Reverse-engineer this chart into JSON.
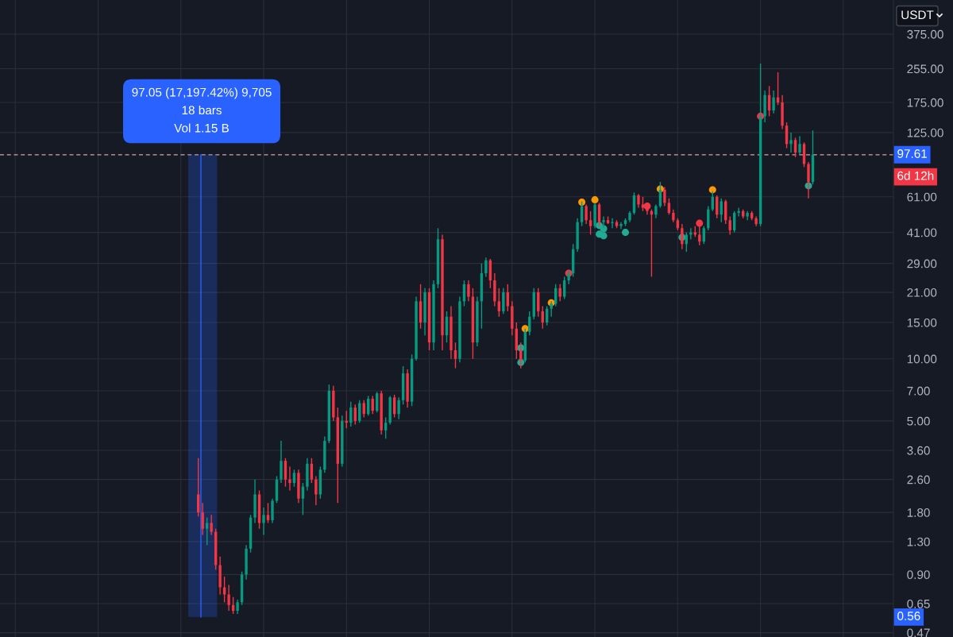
{
  "chart_data": {
    "type": "candlestick",
    "categories": [
      null,
      null,
      null,
      null,
      null,
      null,
      null,
      null,
      null,
      null,
      null,
      null,
      null,
      null,
      null,
      null,
      null,
      null,
      null,
      null,
      null,
      null,
      null,
      null,
      null,
      null,
      null,
      null,
      null,
      null,
      null,
      null,
      null,
      null,
      null,
      null,
      null,
      null,
      null,
      null,
      null,
      null,
      null,
      null,
      null,
      null,
      null,
      null,
      null,
      null,
      null,
      null,
      null,
      null,
      null,
      null,
      null,
      null,
      null,
      null,
      null,
      null,
      null,
      null,
      null,
      null,
      null,
      null,
      null,
      null,
      null,
      null,
      null,
      null,
      null,
      null,
      null,
      null,
      null,
      null,
      null,
      null,
      null,
      null,
      null,
      null,
      null,
      null,
      null,
      null,
      null,
      null,
      null,
      null,
      null,
      null,
      null,
      null,
      null,
      null,
      null,
      null,
      null,
      null,
      null,
      null,
      null,
      null,
      null,
      null,
      null,
      null,
      null,
      null,
      null,
      null,
      null,
      null,
      null,
      null,
      null,
      null,
      null,
      null,
      null,
      null,
      null,
      null,
      null,
      null,
      null,
      null,
      null,
      null,
      null,
      null,
      null,
      null,
      null,
      null,
      null,
      null,
      null,
      null,
      null,
      null,
      null,
      null,
      null,
      null,
      null,
      null,
      null,
      null,
      null,
      null,
      null,
      null,
      null,
      null,
      null,
      null,
      null,
      null,
      null,
      null,
      null,
      null,
      null,
      null,
      null,
      null,
      null,
      null,
      null,
      null,
      null,
      null,
      null,
      null,
      null,
      null,
      null,
      null,
      null,
      null,
      null,
      null,
      null,
      null,
      null,
      null,
      null,
      null,
      null,
      null,
      null,
      null,
      null,
      null,
      null,
      null,
      null,
      null,
      null
    ],
    "ohlc": [
      null,
      null,
      null,
      null,
      null,
      null,
      null,
      null,
      null,
      null,
      null,
      null,
      null,
      null,
      null,
      null,
      null,
      null,
      null,
      null,
      null,
      null,
      null,
      null,
      null,
      null,
      null,
      null,
      null,
      null,
      null,
      null,
      null,
      null,
      null,
      null,
      null,
      null,
      null,
      null,
      null,
      null,
      null,
      null,
      null,
      [
        2.2,
        3.3,
        1.72,
        1.8
      ],
      [
        1.8,
        2.0,
        1.4,
        1.5
      ],
      [
        1.5,
        1.7,
        1.25,
        1.6
      ],
      [
        1.6,
        1.75,
        1.4,
        1.45
      ],
      [
        1.45,
        1.5,
        0.95,
        1.0
      ],
      [
        1.0,
        1.1,
        0.72,
        0.78
      ],
      [
        0.78,
        0.88,
        0.66,
        0.72
      ],
      [
        0.72,
        0.8,
        0.6,
        0.64
      ],
      [
        0.64,
        0.7,
        0.58,
        0.6
      ],
      [
        0.6,
        0.68,
        0.58,
        0.66
      ],
      [
        0.66,
        0.93,
        0.64,
        0.9
      ],
      [
        0.9,
        1.25,
        0.85,
        1.2
      ],
      [
        1.2,
        1.75,
        1.15,
        1.7
      ],
      [
        1.7,
        2.6,
        1.6,
        2.2
      ],
      [
        2.2,
        2.3,
        1.5,
        1.6
      ],
      [
        1.6,
        1.9,
        1.4,
        1.75
      ],
      [
        1.75,
        2.0,
        1.6,
        1.65
      ],
      [
        1.65,
        2.1,
        1.6,
        2.05
      ],
      [
        2.05,
        2.7,
        2.0,
        2.6
      ],
      [
        2.6,
        4.0,
        2.5,
        3.2
      ],
      [
        3.2,
        3.3,
        2.4,
        2.6
      ],
      [
        2.6,
        3.0,
        2.3,
        2.5
      ],
      [
        2.5,
        2.9,
        2.4,
        2.8
      ],
      [
        2.8,
        2.9,
        2.0,
        2.1
      ],
      [
        2.1,
        2.5,
        1.75,
        2.4
      ],
      [
        2.4,
        3.3,
        2.3,
        3.1
      ],
      [
        3.1,
        3.3,
        2.5,
        2.6
      ],
      [
        2.6,
        2.7,
        1.95,
        2.2
      ],
      [
        2.2,
        3.0,
        2.1,
        2.9
      ],
      [
        2.9,
        4.2,
        2.8,
        4.0
      ],
      [
        4.0,
        7.5,
        3.9,
        7.0
      ],
      [
        7.0,
        7.4,
        5.0,
        5.2
      ],
      [
        5.2,
        5.8,
        2.0,
        3.1
      ],
      [
        3.1,
        5.3,
        3.0,
        5.0
      ],
      [
        5.0,
        5.6,
        4.6,
        4.9
      ],
      [
        4.9,
        6.2,
        4.7,
        5.8
      ],
      [
        5.8,
        6.0,
        4.8,
        5.0
      ],
      [
        5.0,
        6.3,
        4.9,
        6.1
      ],
      [
        6.1,
        6.3,
        5.2,
        5.4
      ],
      [
        5.4,
        6.6,
        5.3,
        6.4
      ],
      [
        6.4,
        6.6,
        5.4,
        5.6
      ],
      [
        5.6,
        6.9,
        5.5,
        6.8
      ],
      [
        6.8,
        7.0,
        4.3,
        4.5
      ],
      [
        4.5,
        5.2,
        4.1,
        4.9
      ],
      [
        4.9,
        6.6,
        4.8,
        6.5
      ],
      [
        6.5,
        6.7,
        5.2,
        5.4
      ],
      [
        5.4,
        6.5,
        5.1,
        6.3
      ],
      [
        6.3,
        9.2,
        6.0,
        8.5
      ],
      [
        8.5,
        8.9,
        5.8,
        6.2
      ],
      [
        6.2,
        10.5,
        5.9,
        10.0
      ],
      [
        10,
        20,
        9.8,
        19
      ],
      [
        19,
        23,
        14,
        15
      ],
      [
        15,
        22,
        13,
        21
      ],
      [
        21,
        22,
        11,
        12
      ],
      [
        12,
        24,
        11,
        23
      ],
      [
        23,
        43,
        22,
        38
      ],
      [
        38,
        40,
        11,
        13
      ],
      [
        13,
        17,
        12,
        16
      ],
      [
        16,
        18,
        10,
        11
      ],
      [
        11,
        12,
        9.0,
        10
      ],
      [
        10,
        20,
        9.6,
        19
      ],
      [
        19,
        24,
        18,
        23
      ],
      [
        23,
        24,
        19,
        20
      ],
      [
        20,
        22,
        10,
        12
      ],
      [
        12,
        20,
        11.5,
        19
      ],
      [
        19,
        29,
        14,
        26
      ],
      [
        26,
        31,
        25,
        30
      ],
      [
        30,
        30.5,
        22,
        24
      ],
      [
        24,
        26,
        18,
        19
      ],
      [
        19,
        22,
        16,
        17
      ],
      [
        17,
        22,
        16.5,
        21
      ],
      [
        21,
        23,
        17,
        18
      ],
      [
        18,
        19,
        13,
        14
      ],
      [
        14,
        15,
        10,
        11
      ],
      [
        11,
        12,
        9.0,
        9.8
      ],
      [
        9.8,
        14,
        9.6,
        13.5
      ],
      [
        13.5,
        17,
        13,
        16
      ],
      [
        16,
        22,
        15.5,
        21
      ],
      [
        21,
        22,
        16,
        17
      ],
      [
        17,
        18,
        14,
        15
      ],
      [
        15,
        18,
        14.5,
        17.5
      ],
      [
        17.5,
        19,
        16,
        18.5
      ],
      [
        18.5,
        23,
        18,
        22
      ],
      [
        22,
        23,
        19,
        20
      ],
      [
        20,
        25,
        19.5,
        24
      ],
      [
        24,
        27,
        23,
        26
      ],
      [
        26,
        36,
        25,
        34
      ],
      [
        34,
        48,
        33,
        46
      ],
      [
        46,
        58,
        44,
        55
      ],
      [
        55,
        56,
        45,
        47
      ],
      [
        47,
        52,
        40,
        44
      ],
      [
        44,
        57,
        43,
        56
      ],
      [
        56,
        57,
        44,
        46
      ],
      [
        46,
        49,
        43,
        47
      ],
      [
        47,
        49,
        45,
        45.5
      ],
      [
        45.5,
        48,
        43,
        46
      ],
      [
        46,
        47,
        43,
        44
      ],
      [
        44,
        46,
        42.5,
        45
      ],
      [
        45,
        48,
        44,
        47
      ],
      [
        47,
        52,
        46,
        51
      ],
      [
        51,
        64,
        50,
        62
      ],
      [
        62,
        63,
        54,
        56
      ],
      [
        56,
        61,
        52,
        54
      ],
      [
        54,
        56,
        50,
        52
      ],
      [
        52,
        53,
        25,
        50
      ],
      [
        50,
        56,
        48,
        55
      ],
      [
        55,
        72,
        54,
        66
      ],
      [
        66,
        68,
        55,
        57
      ],
      [
        57,
        60,
        50,
        51
      ],
      [
        51,
        53,
        46,
        47
      ],
      [
        47,
        48,
        42,
        43
      ],
      [
        43,
        45,
        34,
        36
      ],
      [
        36,
        41,
        33,
        40
      ],
      [
        40,
        43,
        38,
        41
      ],
      [
        41,
        44,
        39,
        40
      ],
      [
        40,
        45,
        35.5,
        37
      ],
      [
        37,
        44,
        36,
        43
      ],
      [
        43,
        55,
        42,
        53
      ],
      [
        53,
        65,
        52,
        61
      ],
      [
        61,
        62,
        48,
        50
      ],
      [
        50,
        60,
        46,
        58
      ],
      [
        58,
        59,
        45,
        47
      ],
      [
        47,
        49,
        40,
        42
      ],
      [
        42,
        52,
        41,
        51
      ],
      [
        51,
        54,
        49,
        52
      ],
      [
        52,
        53,
        48,
        49
      ],
      [
        49,
        52,
        47,
        51
      ],
      [
        51,
        52,
        47,
        48
      ],
      [
        48,
        49,
        44,
        45
      ],
      [
        45,
        270,
        44,
        150
      ],
      [
        150,
        200,
        140,
        190
      ],
      [
        190,
        210,
        150,
        160
      ],
      [
        160,
        200,
        155,
        185
      ],
      [
        185,
        245,
        170,
        175
      ],
      [
        175,
        190,
        130,
        135
      ],
      [
        135,
        140,
        105,
        110
      ],
      [
        110,
        125,
        100,
        115
      ],
      [
        115,
        118,
        95,
        100
      ],
      [
        100,
        120,
        98,
        110
      ],
      [
        110,
        112,
        85,
        88
      ],
      [
        88,
        90,
        60,
        72
      ],
      [
        72,
        128,
        70,
        97.61
      ],
      null,
      null,
      null,
      null,
      null,
      null,
      null,
      null,
      null,
      null,
      null,
      null,
      null,
      null,
      null,
      null,
      null,
      null
    ],
    "colors": [
      null,
      null,
      null,
      null,
      null,
      null,
      null,
      null,
      null,
      null,
      null,
      null,
      null,
      null,
      null,
      null,
      null,
      null,
      null,
      null,
      null,
      null,
      null,
      null,
      null,
      null,
      null,
      null,
      null,
      null,
      null,
      null,
      null,
      null,
      null,
      null,
      null,
      null,
      null,
      null,
      null,
      null,
      null,
      null,
      null,
      "#f23645",
      "#f23645",
      "#089981",
      "#f23645",
      "#f23645",
      "#f23645",
      "#f23645",
      "#f23645",
      "#f23645",
      "#089981",
      "#089981",
      "#089981",
      "#089981",
      "#089981",
      "#f23645",
      "#089981",
      "#f23645",
      "#089981",
      "#089981",
      "#089981",
      "#f23645",
      "#f23645",
      "#089981",
      "#f23645",
      "#089981",
      "#089981",
      "#f23645",
      "#f23645",
      "#089981",
      "#089981",
      "#089981",
      "#f23645",
      "#f23645",
      "#089981",
      "#f23645",
      "#089981",
      "#f23645",
      "#089981",
      "#f23645",
      "#089981",
      "#f23645",
      "#089981",
      "#f23645",
      "#089981",
      "#089981",
      "#f23645",
      "#089981",
      "#089981",
      "#f23645",
      "#089981",
      "#089981",
      "#f23645",
      "#089981",
      "#f23645",
      "#089981",
      "#089981",
      "#f23645",
      "#089981",
      "#f23645",
      "#f23645",
      "#089981",
      "#089981",
      "#f23645",
      "#f23645",
      "#089981",
      "#089981",
      "#089981",
      "#f23645",
      "#f23645",
      "#f23645",
      "#089981",
      "#f23645",
      "#f23645",
      "#f23645",
      "#f23645",
      "#089981",
      "#089981",
      "#089981",
      "#f23645",
      "#f23645",
      "#089981",
      "#089981",
      "#089981",
      "#f23645",
      "#089981",
      "#089981",
      "#089981",
      "#089981",
      "#089981",
      "#f23645",
      "#f23645",
      "#089981",
      "#f23645",
      "#089981",
      "#f23645",
      "#089981",
      "#f23645",
      "#089981",
      "#089981",
      "#089981",
      "#089981",
      "#f23645",
      "#f23645",
      "#f23645",
      "#f23645",
      "#089981",
      "#089981",
      "#f23645",
      "#f23645",
      "#f23645",
      "#f23645",
      "#f23645",
      "#089981",
      "#089981",
      "#f23645",
      "#f23645",
      "#089981",
      "#089981",
      "#089981",
      "#f23645",
      "#089981",
      "#f23645",
      "#f23645",
      "#089981",
      "#089981",
      "#f23645",
      "#089981",
      "#f23645",
      "#f23645",
      "#089981",
      "#089981",
      "#f23645",
      "#089981",
      "#f23645",
      "#f23645",
      "#f23645",
      "#089981",
      "#f23645",
      "#089981",
      "#f23645",
      "#f23645",
      "#089981",
      null,
      null,
      null,
      null,
      null,
      null,
      null,
      null,
      null,
      null,
      null,
      null,
      null,
      null,
      null,
      null,
      null,
      null
    ],
    "series": [
      {
        "type": "scatter",
        "color": "#ff9800",
        "values": [
          null,
          null,
          null,
          null,
          null,
          null,
          null,
          null,
          null,
          null,
          null,
          null,
          null,
          null,
          null,
          null,
          null,
          null,
          null,
          null,
          null,
          null,
          null,
          null,
          null,
          null,
          null,
          null,
          null,
          null,
          null,
          null,
          null,
          null,
          null,
          null,
          null,
          null,
          null,
          null,
          null,
          null,
          null,
          null,
          null,
          null,
          null,
          null,
          null,
          null,
          null,
          null,
          null,
          null,
          null,
          null,
          null,
          null,
          null,
          null,
          null,
          null,
          null,
          null,
          null,
          null,
          null,
          null,
          null,
          null,
          null,
          null,
          null,
          null,
          null,
          null,
          null,
          null,
          null,
          null,
          null,
          null,
          null,
          null,
          null,
          null,
          null,
          null,
          null,
          null,
          null,
          null,
          null,
          null,
          null,
          null,
          null,
          null,
          null,
          null,
          null,
          null,
          null,
          null,
          null,
          null,
          null,
          null,
          null,
          null,
          null,
          null,
          null,
          null,
          null,
          null,
          null,
          null,
          null,
          null,
          14,
          null,
          null,
          null,
          null,
          null,
          18.7,
          null,
          null,
          null,
          null,
          null,
          null,
          57.5,
          null,
          null,
          59,
          null,
          null,
          null,
          null,
          null,
          null,
          null,
          null,
          null,
          null,
          null,
          null,
          null,
          null,
          66.6,
          null,
          null,
          null,
          null,
          null,
          null,
          null,
          null,
          null,
          null,
          null,
          66,
          null,
          null,
          null,
          null,
          null,
          null,
          null,
          null,
          null,
          null,
          null,
          null,
          null,
          null,
          null,
          null,
          null,
          null,
          null,
          null,
          null,
          null,
          null,
          null,
          null,
          null,
          null,
          null,
          null,
          null,
          null,
          null,
          null,
          null,
          null,
          null,
          null,
          null,
          null,
          null,
          null
        ]
      },
      {
        "type": "scatter",
        "color": "#f23645",
        "values": [
          null,
          null,
          null,
          null,
          null,
          null,
          null,
          null,
          null,
          null,
          null,
          null,
          null,
          null,
          null,
          null,
          null,
          null,
          null,
          null,
          null,
          null,
          null,
          null,
          null,
          null,
          null,
          null,
          null,
          null,
          null,
          null,
          null,
          null,
          null,
          null,
          null,
          null,
          null,
          null,
          null,
          null,
          null,
          null,
          null,
          null,
          null,
          null,
          null,
          null,
          null,
          null,
          null,
          null,
          null,
          null,
          null,
          null,
          null,
          null,
          null,
          null,
          null,
          null,
          null,
          null,
          null,
          null,
          null,
          null,
          null,
          null,
          null,
          null,
          null,
          null,
          null,
          null,
          null,
          null,
          null,
          null,
          null,
          null,
          null,
          null,
          null,
          null,
          null,
          null,
          null,
          null,
          null,
          null,
          null,
          null,
          null,
          null,
          null,
          null,
          null,
          null,
          null,
          null,
          null,
          null,
          null,
          null,
          null,
          null,
          null,
          null,
          null,
          null,
          null,
          null,
          null,
          null,
          null,
          null,
          null,
          null,
          null,
          null,
          null,
          null,
          null,
          null,
          null,
          null,
          26,
          null,
          null,
          null,
          null,
          null,
          null,
          null,
          null,
          null,
          null,
          null,
          null,
          null,
          null,
          null,
          null,
          null,
          55,
          null,
          null,
          null,
          null,
          null,
          null,
          null,
          null,
          null,
          null,
          null,
          45.4,
          null,
          null,
          null,
          null,
          null,
          null,
          null,
          null,
          null,
          null,
          null,
          null,
          null,
          150,
          null,
          null,
          null,
          null,
          null,
          null,
          null,
          null,
          null,
          null,
          null,
          null,
          null,
          null,
          null,
          null,
          null,
          null,
          null,
          null,
          null,
          null,
          null,
          null,
          null,
          null,
          null,
          null,
          null,
          null
        ]
      },
      {
        "type": "scatter",
        "color": "#22ab94",
        "values": [
          null,
          null,
          null,
          null,
          null,
          null,
          null,
          null,
          null,
          null,
          null,
          null,
          null,
          null,
          null,
          null,
          null,
          null,
          null,
          null,
          null,
          null,
          null,
          null,
          null,
          null,
          null,
          null,
          null,
          null,
          null,
          null,
          null,
          null,
          null,
          null,
          null,
          null,
          null,
          null,
          null,
          null,
          null,
          null,
          null,
          null,
          null,
          null,
          null,
          null,
          null,
          null,
          null,
          null,
          null,
          null,
          null,
          null,
          null,
          null,
          null,
          null,
          null,
          null,
          null,
          null,
          null,
          null,
          null,
          null,
          null,
          null,
          null,
          null,
          null,
          null,
          null,
          null,
          null,
          null,
          null,
          null,
          null,
          null,
          null,
          null,
          null,
          null,
          null,
          null,
          null,
          null,
          null,
          null,
          null,
          null,
          null,
          null,
          null,
          null,
          null,
          null,
          null,
          null,
          null,
          null,
          null,
          null,
          null,
          null,
          null,
          null,
          null,
          null,
          null,
          null,
          null,
          null,
          null,
          9.6,
          null,
          null,
          null,
          null,
          null,
          null,
          null,
          null,
          null,
          null,
          null,
          null,
          null,
          null,
          null,
          null,
          null,
          44.3,
          42.7,
          null,
          null,
          null,
          null,
          41,
          null,
          null,
          null,
          null,
          null,
          null,
          null,
          null,
          null,
          null,
          null,
          null,
          38.8,
          null,
          null,
          null,
          null,
          null,
          null,
          null,
          null,
          null,
          null,
          null,
          null,
          null,
          null,
          null,
          null,
          null,
          null,
          null,
          null,
          null,
          null,
          null,
          null,
          null,
          null,
          null,
          null,
          69,
          null,
          null,
          null,
          null,
          null,
          null,
          null,
          null,
          null,
          null,
          null,
          null,
          null,
          null,
          null,
          null,
          null,
          null,
          null
        ]
      },
      {
        "type": "scatter",
        "color": "#22ab94",
        "values": [
          null,
          null,
          null,
          null,
          null,
          null,
          null,
          null,
          null,
          null,
          null,
          null,
          null,
          null,
          null,
          null,
          null,
          null,
          null,
          null,
          null,
          null,
          null,
          null,
          null,
          null,
          null,
          null,
          null,
          null,
          null,
          null,
          null,
          null,
          null,
          null,
          null,
          null,
          null,
          null,
          null,
          null,
          null,
          null,
          null,
          null,
          null,
          null,
          null,
          null,
          null,
          null,
          null,
          null,
          null,
          null,
          null,
          null,
          null,
          null,
          null,
          null,
          null,
          null,
          null,
          null,
          null,
          null,
          null,
          null,
          null,
          null,
          null,
          null,
          null,
          null,
          null,
          null,
          null,
          null,
          null,
          null,
          null,
          null,
          null,
          null,
          null,
          null,
          null,
          null,
          null,
          null,
          null,
          null,
          null,
          null,
          null,
          null,
          null,
          null,
          null,
          null,
          null,
          null,
          null,
          null,
          null,
          null,
          null,
          null,
          null,
          null,
          null,
          null,
          null,
          null,
          null,
          null,
          null,
          11.3,
          null,
          null,
          null,
          null,
          null,
          null,
          null,
          null,
          null,
          null,
          null,
          null,
          null,
          null,
          null,
          null,
          null,
          40.2,
          39.5,
          null,
          null,
          null,
          null,
          null,
          null,
          null,
          null,
          null,
          null,
          null,
          null,
          null,
          null,
          null,
          null,
          null,
          null,
          null,
          null,
          null,
          null,
          null,
          null,
          null,
          null,
          null,
          null,
          null,
          null,
          null,
          null,
          null,
          null,
          null,
          null,
          null,
          null,
          null,
          null,
          null,
          null,
          null,
          null,
          null,
          null,
          null,
          null,
          null,
          null,
          null,
          null,
          null,
          null,
          null,
          null,
          null,
          null,
          null,
          null,
          null,
          null,
          null,
          null,
          null,
          null
        ]
      }
    ],
    "marker": "circle",
    "log": true,
    "ylim": [
      0.448,
      549
    ],
    "yticks": [
      {
        "value": 0.47,
        "label": "0.47"
      },
      {
        "value": 0.65,
        "label": "0.65"
      },
      {
        "value": 0.9,
        "label": "0.90"
      },
      {
        "value": 1.3,
        "label": "1.30"
      },
      {
        "value": 1.8,
        "label": "1.80"
      },
      {
        "value": 2.6,
        "label": "2.60"
      },
      {
        "value": 3.6,
        "label": "3.60"
      },
      {
        "value": 5,
        "label": "5.00"
      },
      {
        "value": 7,
        "label": "7.00"
      },
      {
        "value": 10,
        "label": "10.00"
      },
      {
        "value": 15,
        "label": "15.00"
      },
      {
        "value": 21,
        "label": "21.00"
      },
      {
        "value": 29,
        "label": "29.00"
      },
      {
        "value": 41,
        "label": "41.00"
      },
      {
        "value": 61,
        "label": "61.00"
      },
      {
        "value": 125,
        "label": "125.00"
      },
      {
        "value": 175,
        "label": "175.00"
      },
      {
        "value": 255,
        "label": "255.00"
      },
      {
        "value": 375,
        "label": "375.00"
      }
    ],
    "grid": true,
    "tick_labels": "y",
    "ref_lines": [
      {
        "axis": "y",
        "value": 97.61,
        "label": "97.61",
        "color": "#d8a0a8",
        "line_style": "dashed"
      }
    ],
    "annotations": [
      "97.05 (17,197.42%) 9,705\n18 bars\nVol 1.15 B",
      "6d 12h",
      "USDT",
      {
        "text": "0.56",
        "y": 0.56
      }
    ]
  }
}
